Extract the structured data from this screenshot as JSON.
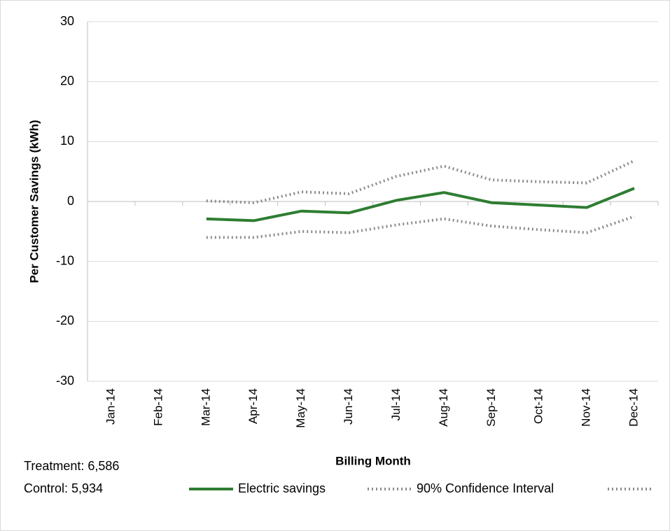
{
  "chart_data": {
    "type": "line",
    "y_label": "Per Customer Savings (kWh)",
    "x_label": "Billing Month",
    "annotations": [
      "Treatment: 6,586",
      "Control: 5,934"
    ],
    "categories": [
      "Jan-14",
      "Feb-14",
      "Mar-14",
      "Apr-14",
      "May-14",
      "Jun-14",
      "Jul-14",
      "Aug-14",
      "Sep-14",
      "Oct-14",
      "Nov-14",
      "Dec-14"
    ],
    "series": [
      {
        "name": "Electric savings",
        "color": "#2e7d32",
        "style": "solid",
        "values": [
          null,
          null,
          -2.9,
          -3.2,
          -1.6,
          -1.9,
          0.2,
          1.5,
          -0.2,
          -0.6,
          -1.0,
          2.2
        ]
      },
      {
        "name": "90% Confidence Interval",
        "color": "#8c8c8c",
        "style": "dotted",
        "values": [
          null,
          null,
          0.1,
          -0.2,
          1.6,
          1.3,
          4.2,
          5.9,
          3.6,
          3.3,
          3.1,
          6.8
        ]
      },
      {
        "color": "#8c8c8c",
        "style": "dotted",
        "values": [
          null,
          null,
          -6.0,
          -6.0,
          -5.0,
          -5.2,
          -3.9,
          -2.9,
          -4.1,
          -4.7,
          -5.2,
          -2.5
        ]
      }
    ],
    "ylim": [
      -30,
      30
    ],
    "yticks": [
      -30,
      -20,
      -10,
      0,
      10,
      20,
      30
    ],
    "grid": true
  }
}
